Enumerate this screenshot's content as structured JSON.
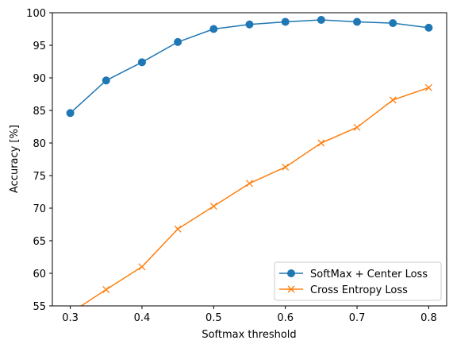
{
  "chart_data": {
    "type": "line",
    "xlabel": "Softmax threshold",
    "ylabel": "Accuracy [%]",
    "xlim": [
      0.275,
      0.825
    ],
    "ylim": [
      55,
      100
    ],
    "xticks": [
      0.3,
      0.4,
      0.5,
      0.6,
      0.7,
      0.8
    ],
    "xtick_labels": [
      "0.3",
      "0.4",
      "0.5",
      "0.6",
      "0.7",
      "0.8"
    ],
    "yticks": [
      55,
      60,
      65,
      70,
      75,
      80,
      85,
      90,
      95,
      100
    ],
    "ytick_labels": [
      "55",
      "60",
      "65",
      "70",
      "75",
      "80",
      "85",
      "90",
      "95",
      "100"
    ],
    "grid": false,
    "legend_position": "lower-right",
    "x": [
      0.3,
      0.35,
      0.4,
      0.45,
      0.5,
      0.55,
      0.6,
      0.65,
      0.7,
      0.75,
      0.8
    ],
    "series": [
      {
        "name": "SoftMax + Center Loss",
        "marker": "circle",
        "color": "#1f77b4",
        "values": [
          84.6,
          89.6,
          92.4,
          95.5,
          97.5,
          98.2,
          98.6,
          98.9,
          98.6,
          98.4,
          97.7
        ]
      },
      {
        "name": "Cross Entropy Loss",
        "marker": "x",
        "color": "#ff7f0e",
        "values": [
          53.9,
          57.5,
          61.0,
          66.8,
          70.3,
          73.8,
          76.3,
          80.0,
          82.4,
          86.6,
          88.5
        ]
      }
    ]
  }
}
